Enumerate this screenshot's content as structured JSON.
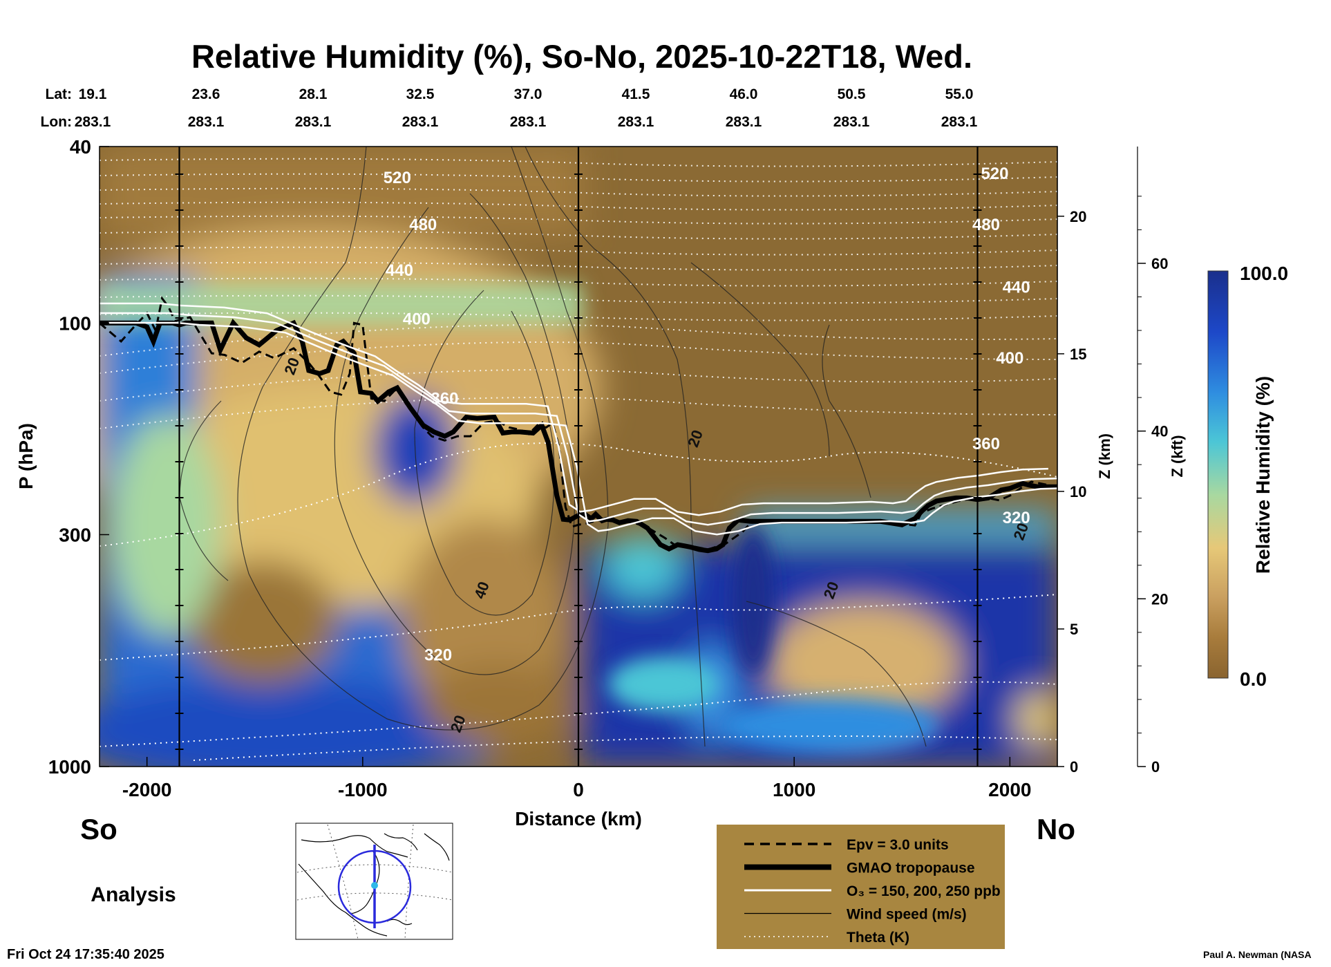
{
  "chart_data": {
    "type": "heatmap",
    "title": "Relative Humidity (%), So-No, 2025-10-22T18, Wed.",
    "xlabel": "Distance (km)",
    "ylabel": "P (hPa)",
    "x_ticks": [
      -2000,
      -1000,
      0,
      1000,
      2000
    ],
    "xlim": [
      -2220,
      2220
    ],
    "p_ticks": [
      40,
      100,
      300,
      1000
    ],
    "p_range": [
      40,
      1000
    ],
    "y_scale": "log",
    "z_km_label": "Z (km)",
    "z_km_ticks": [
      0,
      5,
      10,
      15,
      20
    ],
    "z_kft_label": "Z (kft)",
    "z_kft_ticks": [
      0,
      20,
      40,
      60
    ],
    "lat_label": "Lat:",
    "lon_label": "Lon:",
    "lat_values": [
      "19.1",
      "23.6",
      "28.1",
      "32.5",
      "37.0",
      "41.5",
      "46.0",
      "50.5",
      "55.0"
    ],
    "lon_values": [
      "283.1",
      "283.1",
      "283.1",
      "283.1",
      "283.1",
      "283.1",
      "283.1",
      "283.1",
      "283.1"
    ],
    "marker_x_km": [
      -1850,
      0,
      1850
    ],
    "colorbar": {
      "label": "Relative Humidity (%)",
      "max": "100.0",
      "min": "0.0",
      "colors": [
        "#1a2f8c",
        "#1d48c8",
        "#2f8ee0",
        "#4cc6d6",
        "#a8d8a0",
        "#e6c878",
        "#caa060",
        "#a87c3c",
        "#8a6430"
      ]
    },
    "theta_labels": [
      {
        "text": "520",
        "x": -840,
        "p": 47
      },
      {
        "text": "480",
        "x": -720,
        "p": 60
      },
      {
        "text": "440",
        "x": -830,
        "p": 76
      },
      {
        "text": "400",
        "x": -750,
        "p": 98
      },
      {
        "text": "360",
        "x": -620,
        "p": 148
      },
      {
        "text": "320",
        "x": -650,
        "p": 560
      },
      {
        "text": "520",
        "x": 1930,
        "p": 46
      },
      {
        "text": "480",
        "x": 1890,
        "p": 60
      },
      {
        "text": "440",
        "x": 2030,
        "p": 83
      },
      {
        "text": "400",
        "x": 2000,
        "p": 120
      },
      {
        "text": "360",
        "x": 1890,
        "p": 187
      },
      {
        "text": "320",
        "x": 2030,
        "p": 275
      }
    ],
    "wind_labels": [
      {
        "text": "20",
        "x": -1330,
        "p": 125
      },
      {
        "text": "20",
        "x": 540,
        "p": 182
      },
      {
        "text": "40",
        "x": -450,
        "p": 400
      },
      {
        "text": "20",
        "x": 1170,
        "p": 400
      },
      {
        "text": "20",
        "x": -560,
        "p": 800
      },
      {
        "text": "20",
        "x": 2050,
        "p": 295
      }
    ],
    "series": [
      {
        "name": "GMAO tropopause",
        "x": [
          -2220,
          -2050,
          -2000,
          -1970,
          -1940,
          -1880,
          -1850,
          -1820,
          -1780,
          -1700,
          -1660,
          -1600,
          -1540,
          -1480,
          -1400,
          -1320,
          -1280,
          -1250,
          -1200,
          -1160,
          -1120,
          -1090,
          -1040,
          -1010,
          -960,
          -930,
          -880,
          -840,
          -780,
          -720,
          -670,
          -620,
          -580,
          -520,
          -470,
          -390,
          -350,
          -310,
          -270,
          -210,
          -170,
          -140,
          -100,
          -70,
          -40,
          -10,
          20,
          60,
          80,
          110,
          130,
          160,
          190,
          230,
          270,
          320,
          380,
          420,
          460,
          490,
          520,
          560,
          600,
          640,
          670,
          700,
          740,
          800,
          880,
          950,
          1000,
          1100,
          1200,
          1300,
          1400,
          1500,
          1560,
          1590,
          1620,
          1660,
          1700,
          1750,
          1800,
          1850,
          1900,
          1960,
          2000,
          2060,
          2090,
          2130,
          2220
        ],
        "p": [
          100,
          100,
          102,
          110,
          100,
          100,
          101,
          100,
          100,
          100,
          115,
          100,
          108,
          112,
          104,
          100,
          110,
          128,
          130,
          128,
          112,
          110,
          117,
          143,
          144,
          150,
          143,
          140,
          155,
          170,
          176,
          180,
          176,
          163,
          164,
          163,
          177,
          176,
          176,
          177,
          170,
          186,
          245,
          277,
          278,
          273,
          268,
          276,
          270,
          279,
          277,
          278,
          282,
          279,
          280,
          290,
          316,
          323,
          316,
          318,
          320,
          324,
          326,
          323,
          316,
          290,
          278,
          280,
          280,
          280,
          280,
          280,
          280,
          280,
          280,
          285,
          276,
          266,
          258,
          252,
          250,
          248,
          248,
          250,
          248,
          238,
          236,
          230,
          232,
          234,
          234
        ],
        "color": "#000000",
        "dash": "solid"
      },
      {
        "name": "Epv = 3.0 units",
        "x": [
          -2220,
          -2120,
          -2060,
          -2000,
          -1960,
          -1930,
          -1900,
          -1870,
          -1800,
          -1700,
          -1640,
          -1560,
          -1480,
          -1410,
          -1320,
          -1250,
          -1200,
          -1150,
          -1100,
          -1060,
          -1040,
          -1000,
          -960,
          -900,
          -840,
          -800,
          -760,
          -720,
          -680,
          -620,
          -560,
          -500,
          -440,
          -380,
          -320,
          -270,
          -230,
          -190,
          -150,
          -120,
          -90,
          -60,
          -30,
          0,
          40,
          70,
          110,
          150,
          180,
          240,
          320,
          400,
          460,
          520,
          600,
          680,
          760,
          800,
          900,
          1000,
          1200,
          1400,
          1560,
          1590,
          1640,
          1700,
          1760,
          1820,
          1880,
          1950,
          2000,
          2060,
          2100,
          2140,
          2220
        ],
        "p": [
          100,
          110,
          102,
          95,
          104,
          88,
          92,
          99,
          97,
          117,
          118,
          123,
          116,
          120,
          114,
          123,
          132,
          143,
          145,
          130,
          100,
          101,
          148,
          150,
          140,
          152,
          160,
          172,
          180,
          184,
          180,
          180,
          168,
          166,
          172,
          174,
          178,
          170,
          172,
          168,
          190,
          260,
          288,
          285,
          283,
          280,
          278,
          274,
          279,
          280,
          289,
          305,
          320,
          318,
          324,
          315,
          296,
          282,
          281,
          280,
          280,
          280,
          286,
          268,
          262,
          257,
          252,
          249,
          247,
          251,
          245,
          234,
          228,
          230,
          234
        ],
        "color": "#000000",
        "dash": "dashed"
      },
      {
        "name": "O₃ = 150, 200, 250 ppb",
        "x": [
          -2220,
          -1900,
          -1800,
          -1600,
          -1400,
          -1200,
          -1100,
          -1000,
          -900,
          -800,
          -700,
          -600,
          -500,
          -400,
          -300,
          -200,
          -100,
          -50,
          -20,
          0,
          50,
          100,
          200,
          300,
          400,
          500,
          600,
          700,
          800,
          900,
          1000,
          1200,
          1400,
          1500,
          1560,
          1600,
          1650,
          1700,
          1800,
          1900,
          2000,
          2100,
          2220
        ],
        "p": [
          95,
          95,
          96,
          97,
          100,
          110,
          115,
          120,
          125,
          135,
          145,
          158,
          160,
          160,
          160,
          160,
          162,
          200,
          240,
          270,
          280,
          278,
          270,
          262,
          262,
          280,
          285,
          280,
          270,
          268,
          268,
          268,
          266,
          268,
          265,
          255,
          245,
          240,
          235,
          232,
          228,
          225,
          224
        ],
        "color": "#ffffff",
        "dash": "solid"
      },
      {
        "name": "Wind speed (m/s)",
        "color": "#000000",
        "dash": "thin"
      },
      {
        "name": "Theta (K)",
        "color": "#ffffff",
        "dash": "dotted"
      }
    ]
  },
  "footer": {
    "south_label": "So",
    "north_label": "No",
    "analysis_label": "Analysis",
    "timestamp": "Fri Oct 24 17:35:40 2025",
    "credit": "Paul A. Newman (NASA"
  },
  "legend": {
    "background": "#a88640",
    "items": [
      {
        "label": "Epv = 3.0 units",
        "style": "dashed"
      },
      {
        "label": "GMAO tropopause",
        "style": "thick"
      },
      {
        "label": "O₃ = 150, 200, 250 ppb",
        "style": "white"
      },
      {
        "label": "Wind speed (m/s)",
        "style": "thin"
      },
      {
        "label": "Theta (K)",
        "style": "dotted"
      }
    ]
  },
  "inset_map": {
    "icon": "north-america-map-icon"
  }
}
